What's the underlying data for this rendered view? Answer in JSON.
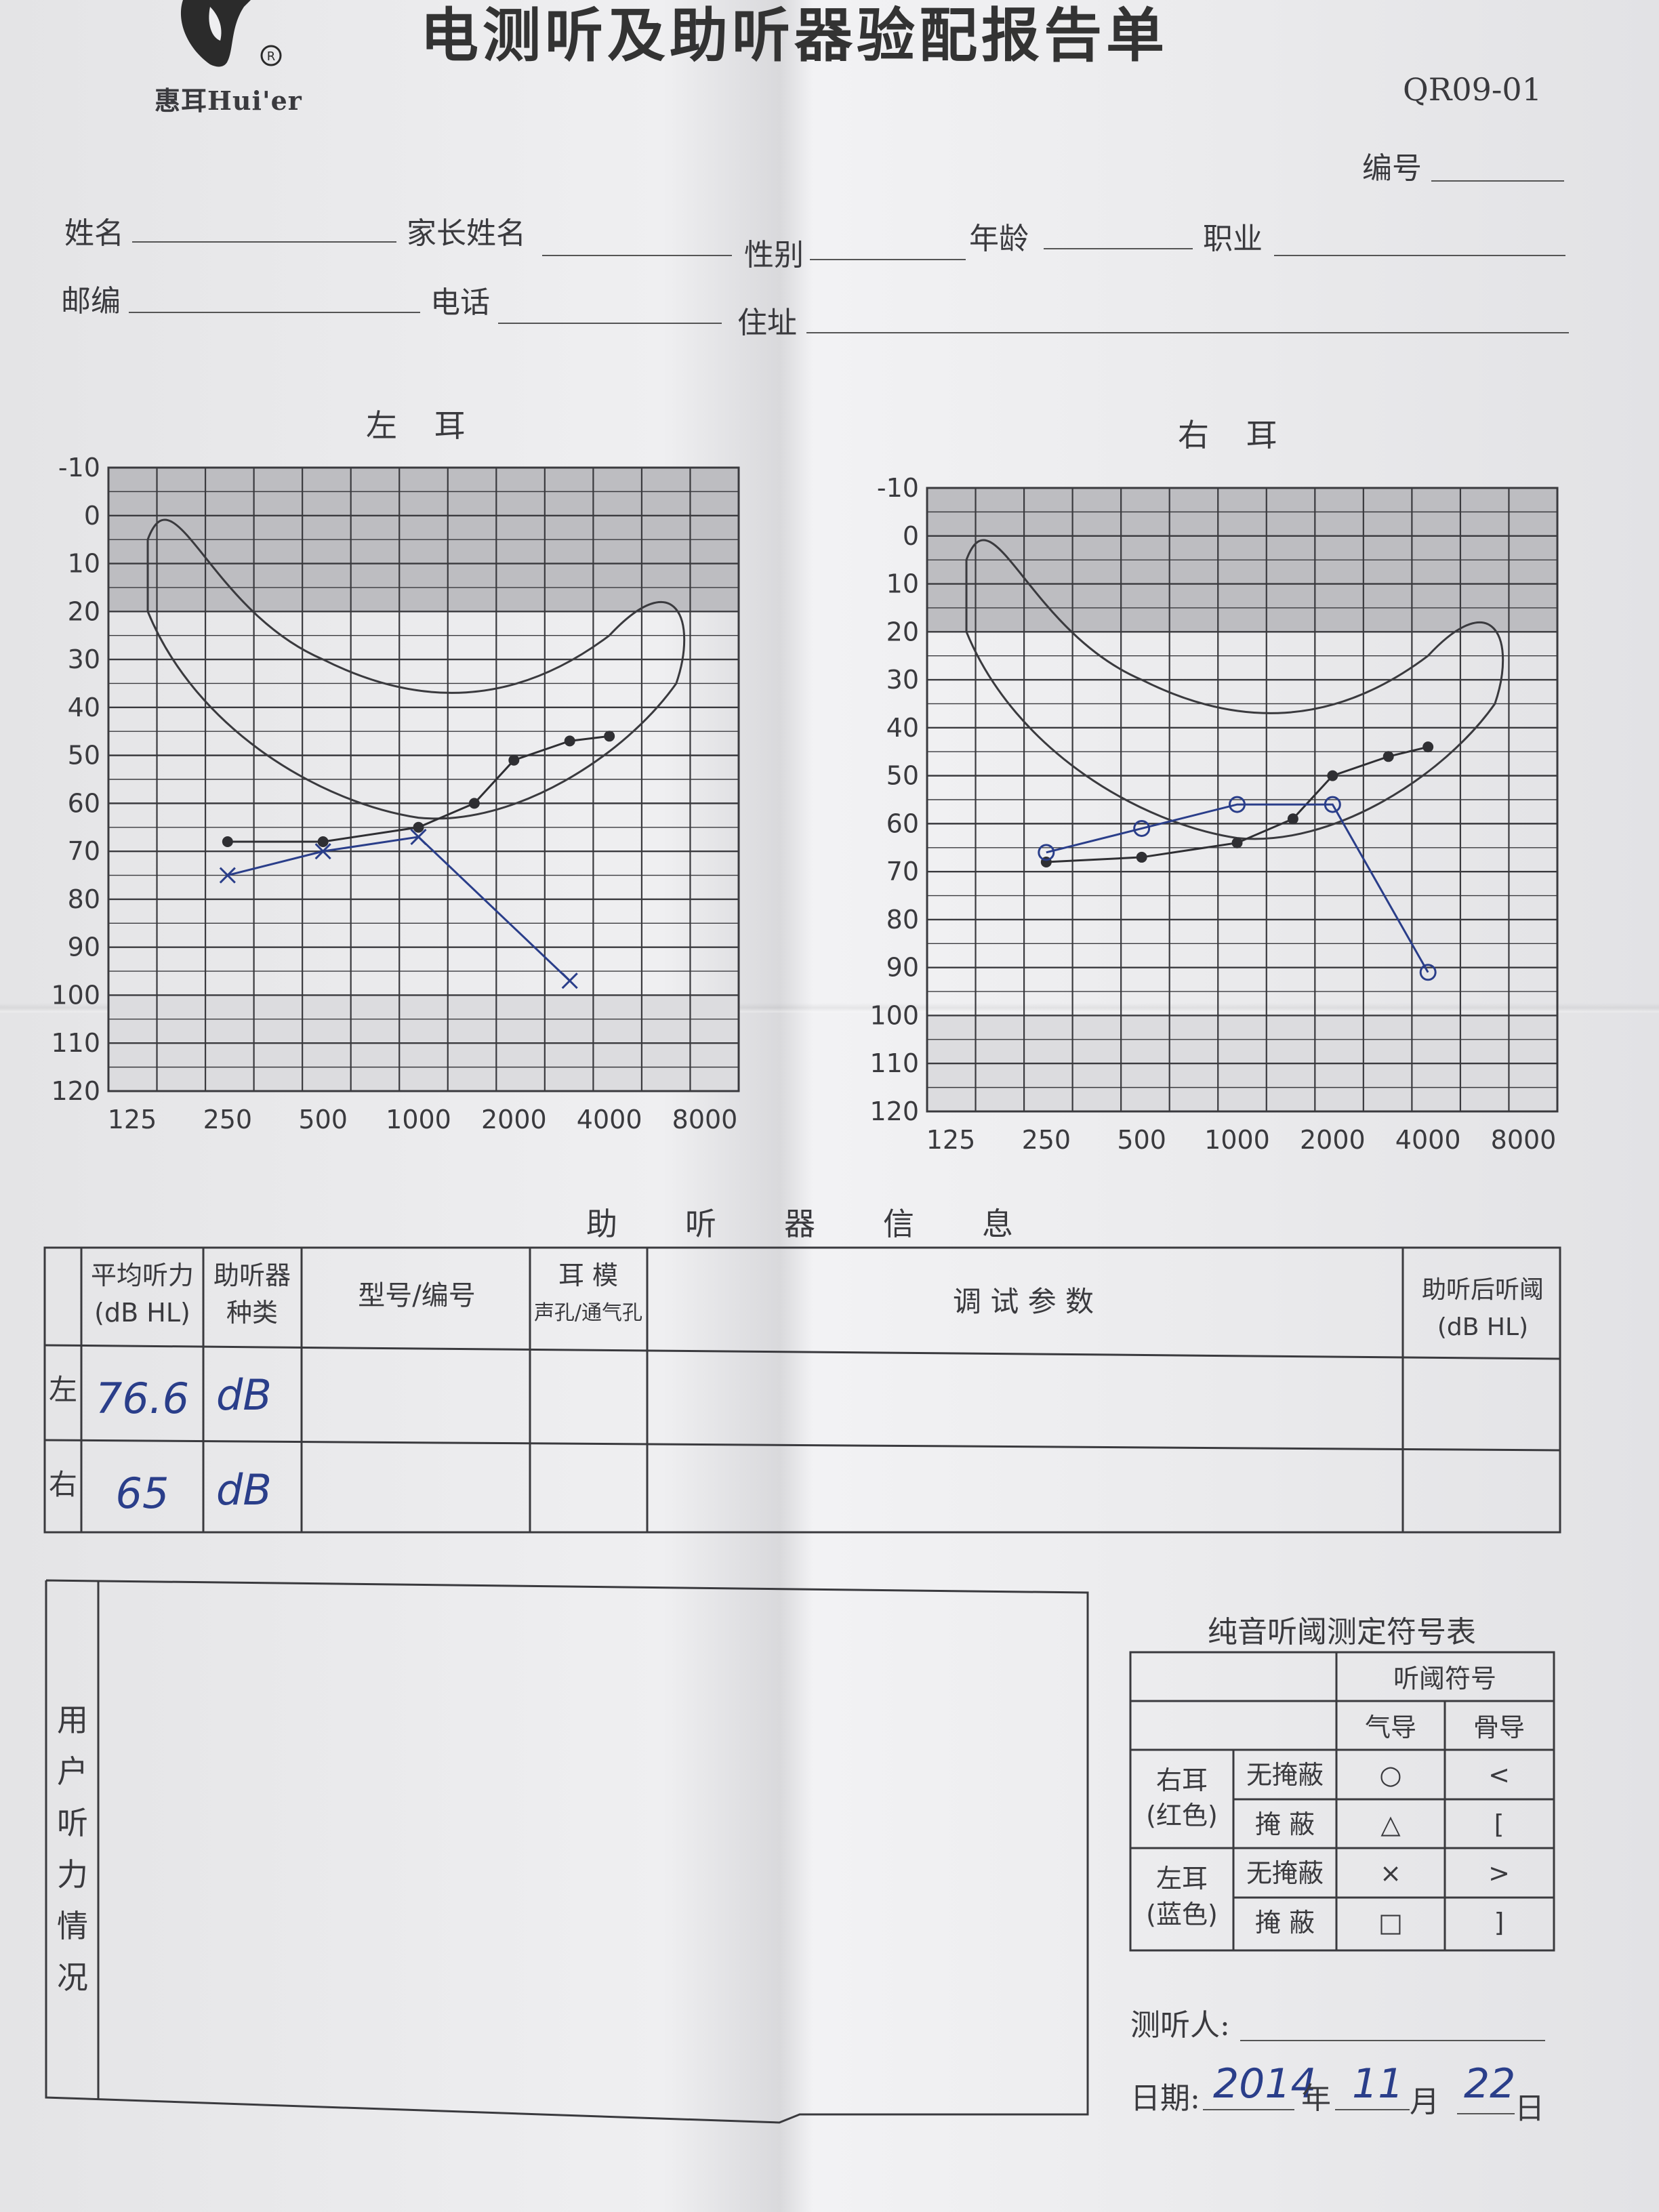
{
  "header": {
    "brand": "惠耳Hui'er",
    "title": "电测听及助听器验配报告单",
    "form_code": "QR09-01",
    "serial_label": "编号"
  },
  "patient_fields": {
    "name": "姓名",
    "parent_name": "家长姓名",
    "gender": "性别",
    "age": "年龄",
    "occupation": "职业",
    "postcode": "邮编",
    "phone": "电话",
    "address": "住址"
  },
  "chart_data": [
    {
      "type": "line",
      "title": "左 耳",
      "x_ticks": [
        "125",
        "250",
        "500",
        "1000",
        "2000",
        "4000",
        "8000"
      ],
      "y_ticks": [
        "-10",
        "0",
        "10",
        "20",
        "30",
        "40",
        "50",
        "60",
        "70",
        "80",
        "90",
        "100",
        "110",
        "120"
      ],
      "ylim": [
        -10,
        120
      ],
      "y_inverted": true,
      "series": [
        {
          "marker": "dot",
          "x": [
            250,
            500,
            1000,
            1500,
            2000,
            3000,
            4000
          ],
          "y": [
            68,
            68,
            65,
            60,
            51,
            47,
            46
          ]
        },
        {
          "marker": "x",
          "x": [
            250,
            500,
            1000,
            3000
          ],
          "y": [
            75,
            70,
            67,
            97
          ]
        }
      ],
      "speech_banana": true,
      "shaded_band": [
        -10,
        20
      ]
    },
    {
      "type": "line",
      "title": "右 耳",
      "x_ticks": [
        "125",
        "250",
        "500",
        "1000",
        "2000",
        "4000",
        "8000"
      ],
      "y_ticks": [
        "-10",
        "0",
        "10",
        "20",
        "30",
        "40",
        "50",
        "60",
        "70",
        "80",
        "90",
        "100",
        "110",
        "120"
      ],
      "ylim": [
        -10,
        120
      ],
      "y_inverted": true,
      "series": [
        {
          "marker": "dot",
          "x": [
            250,
            500,
            1000,
            1500,
            2000,
            3000,
            4000
          ],
          "y": [
            68,
            67,
            64,
            59,
            50,
            46,
            44
          ]
        },
        {
          "marker": "circle",
          "x": [
            250,
            500,
            1000,
            2000,
            4000
          ],
          "y": [
            66,
            61,
            56,
            56,
            91
          ]
        }
      ],
      "speech_banana": true,
      "shaded_band": [
        -10,
        20
      ]
    }
  ],
  "hearing_aid": {
    "section_title": "助听器信息",
    "headers": {
      "avg_1": "平均听力",
      "avg_2": "(dB HL)",
      "type_1": "助听器",
      "type_2": "种类",
      "model": "型号/编号",
      "mold_1": "耳  模",
      "mold_2": "声孔/通气孔",
      "params": "调  试  参  数",
      "after_1": "助听后听阈",
      "after_2": "(dB HL)"
    },
    "rows": [
      {
        "side": "左",
        "avg": "76.6",
        "unit": "dB"
      },
      {
        "side": "右",
        "avg": "65",
        "unit": "dB"
      }
    ]
  },
  "user_hearing_label": [
    "用",
    "户",
    "听",
    "力",
    "情",
    "况"
  ],
  "symbol_table": {
    "title": "纯音听阈测定符号表",
    "header": "听阈符号",
    "col_air": "气导",
    "col_bone": "骨导",
    "right_ear": "右耳",
    "right_color": "(红色)",
    "left_ear": "左耳",
    "left_color": "(蓝色)",
    "unmasked": "无掩蔽",
    "masked": "掩  蔽",
    "symbols": {
      "r_air_unmasked": "○",
      "r_bone_unmasked": "<",
      "r_air_masked": "△",
      "r_bone_masked": "[",
      "l_air_unmasked": "×",
      "l_bone_unmasked": ">",
      "l_air_masked": "□",
      "l_bone_masked": "]"
    }
  },
  "footer": {
    "tester_label": "测听人:",
    "date_label": "日期:",
    "year": "2014",
    "year_unit": "年",
    "month": "11",
    "month_unit": "月",
    "day": "22",
    "day_unit": "日"
  },
  "colors": {
    "ink": "#3a3a3e",
    "pen": "#2a3e8a",
    "shade": "#bdbdc1"
  }
}
